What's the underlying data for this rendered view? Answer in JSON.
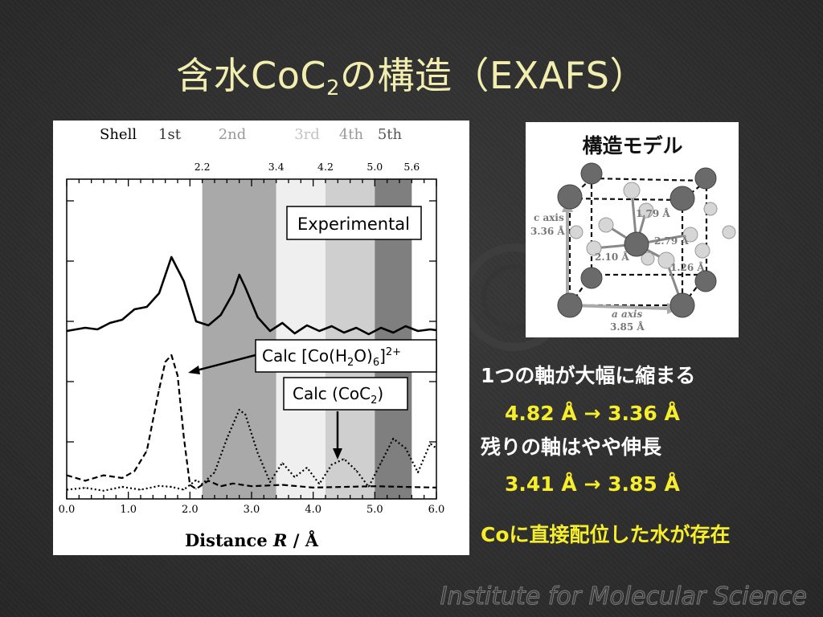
{
  "title": {
    "main": "含水CoC",
    "sub": "2",
    "tail": "の構造（EXAFS）"
  },
  "chart": {
    "shell_label": "Shell",
    "shells": [
      {
        "label": "1st",
        "color": "#333333"
      },
      {
        "label": "2nd",
        "color": "#999999"
      },
      {
        "label": "3rd",
        "color": "#c2c2c2"
      },
      {
        "label": "4th",
        "color": "#999999"
      },
      {
        "label": "5th",
        "color": "#555555"
      }
    ],
    "boundaries": [
      "2.2",
      "3.4",
      "4.2",
      "5.0",
      "5.6"
    ],
    "xlabel_pre": "Distance ",
    "xlabel_var": "R",
    "xlabel_post": " / Å",
    "legend": {
      "experimental": "Experimental",
      "calc_h2o_pre": "Calc [Co(H",
      "calc_h2o_s1": "2",
      "calc_h2o_mid": "O)",
      "calc_h2o_s2": "6",
      "calc_h2o_post": "]",
      "calc_h2o_sup": "2+",
      "calc_coc2_pre": "Calc (CoC",
      "calc_coc2_sub": "2",
      "calc_coc2_post": ")"
    }
  },
  "chart_data": {
    "type": "line",
    "x_ticks": [
      "0.0",
      "1.0",
      "2.0",
      "3.0",
      "4.0",
      "5.0",
      "6.0"
    ],
    "xlim": [
      0.0,
      6.0
    ],
    "shell_regions": [
      [
        2.2,
        3.4
      ],
      [
        3.4,
        4.2
      ],
      [
        4.2,
        5.0
      ],
      [
        5.0,
        5.6
      ]
    ],
    "series": [
      {
        "name": "Experimental",
        "style": "solid",
        "x": [
          0.0,
          0.3,
          0.5,
          0.7,
          0.9,
          1.1,
          1.3,
          1.5,
          1.7,
          1.9,
          2.1,
          2.3,
          2.5,
          2.7,
          2.8,
          2.9,
          3.1,
          3.3,
          3.5,
          3.7,
          3.9,
          4.1,
          4.3,
          4.5,
          4.7,
          4.9,
          5.1,
          5.3,
          5.5,
          5.7,
          5.9,
          6.0
        ],
        "y": [
          0.08,
          0.12,
          0.1,
          0.18,
          0.22,
          0.35,
          0.38,
          0.55,
          1.0,
          0.7,
          0.2,
          0.15,
          0.28,
          0.55,
          0.78,
          0.62,
          0.25,
          0.08,
          0.18,
          0.05,
          0.15,
          0.08,
          0.14,
          0.06,
          0.12,
          0.04,
          0.12,
          0.06,
          0.14,
          0.08,
          0.1,
          0.09
        ]
      },
      {
        "name": "Calc [Co(H2O)6]2+",
        "style": "dashed",
        "x": [
          0.0,
          0.3,
          0.6,
          0.9,
          1.1,
          1.3,
          1.5,
          1.6,
          1.7,
          1.8,
          1.9,
          2.0,
          2.1,
          2.3,
          2.5,
          2.7,
          3.0,
          3.5,
          4.0,
          5.0,
          6.0
        ],
        "y": [
          0.12,
          0.08,
          0.12,
          0.1,
          0.15,
          0.3,
          0.75,
          0.95,
          1.0,
          0.85,
          0.4,
          0.05,
          0.02,
          0.08,
          0.04,
          0.06,
          0.04,
          0.05,
          0.03,
          0.04,
          0.03
        ]
      },
      {
        "name": "Calc (CoC2)",
        "style": "dotted",
        "x": [
          0.0,
          0.3,
          0.6,
          0.9,
          1.2,
          1.5,
          1.7,
          1.9,
          2.1,
          2.2,
          2.4,
          2.6,
          2.8,
          2.9,
          3.1,
          3.3,
          3.5,
          3.7,
          3.9,
          4.1,
          4.3,
          4.5,
          4.7,
          4.9,
          5.1,
          5.3,
          5.5,
          5.7,
          5.9,
          6.0
        ],
        "y": [
          0.02,
          0.04,
          0.01,
          0.05,
          0.02,
          0.06,
          0.05,
          0.02,
          0.12,
          0.08,
          0.2,
          0.55,
          0.85,
          0.8,
          0.4,
          0.1,
          0.3,
          0.15,
          0.25,
          0.08,
          0.28,
          0.34,
          0.22,
          0.05,
          0.3,
          0.55,
          0.45,
          0.2,
          0.5,
          0.45
        ]
      }
    ]
  },
  "model": {
    "title": "構造モデル",
    "c_axis": "c axis",
    "c_len": "3.36 Å",
    "a_axis": "a axis",
    "a_len": "3.85 Å",
    "d1": "1.79 Å",
    "d2": "2.79 Å",
    "d3": "2.10 Å",
    "d4": "1.26 Å"
  },
  "notes": {
    "line1": "1つの軸が大幅に縮まる",
    "line2": "4.82 Å → 3.36 Å",
    "line3": "残りの軸はやや伸長",
    "line4": "3.41 Å → 3.85 Å",
    "line5": "Coに直接配位した水が存在"
  },
  "footer": "Institute for Molecular Science",
  "colors": {
    "title": "#f2eeb0",
    "highlight": "#f6ee2a",
    "text": "#ffffff",
    "background": "#303030"
  }
}
